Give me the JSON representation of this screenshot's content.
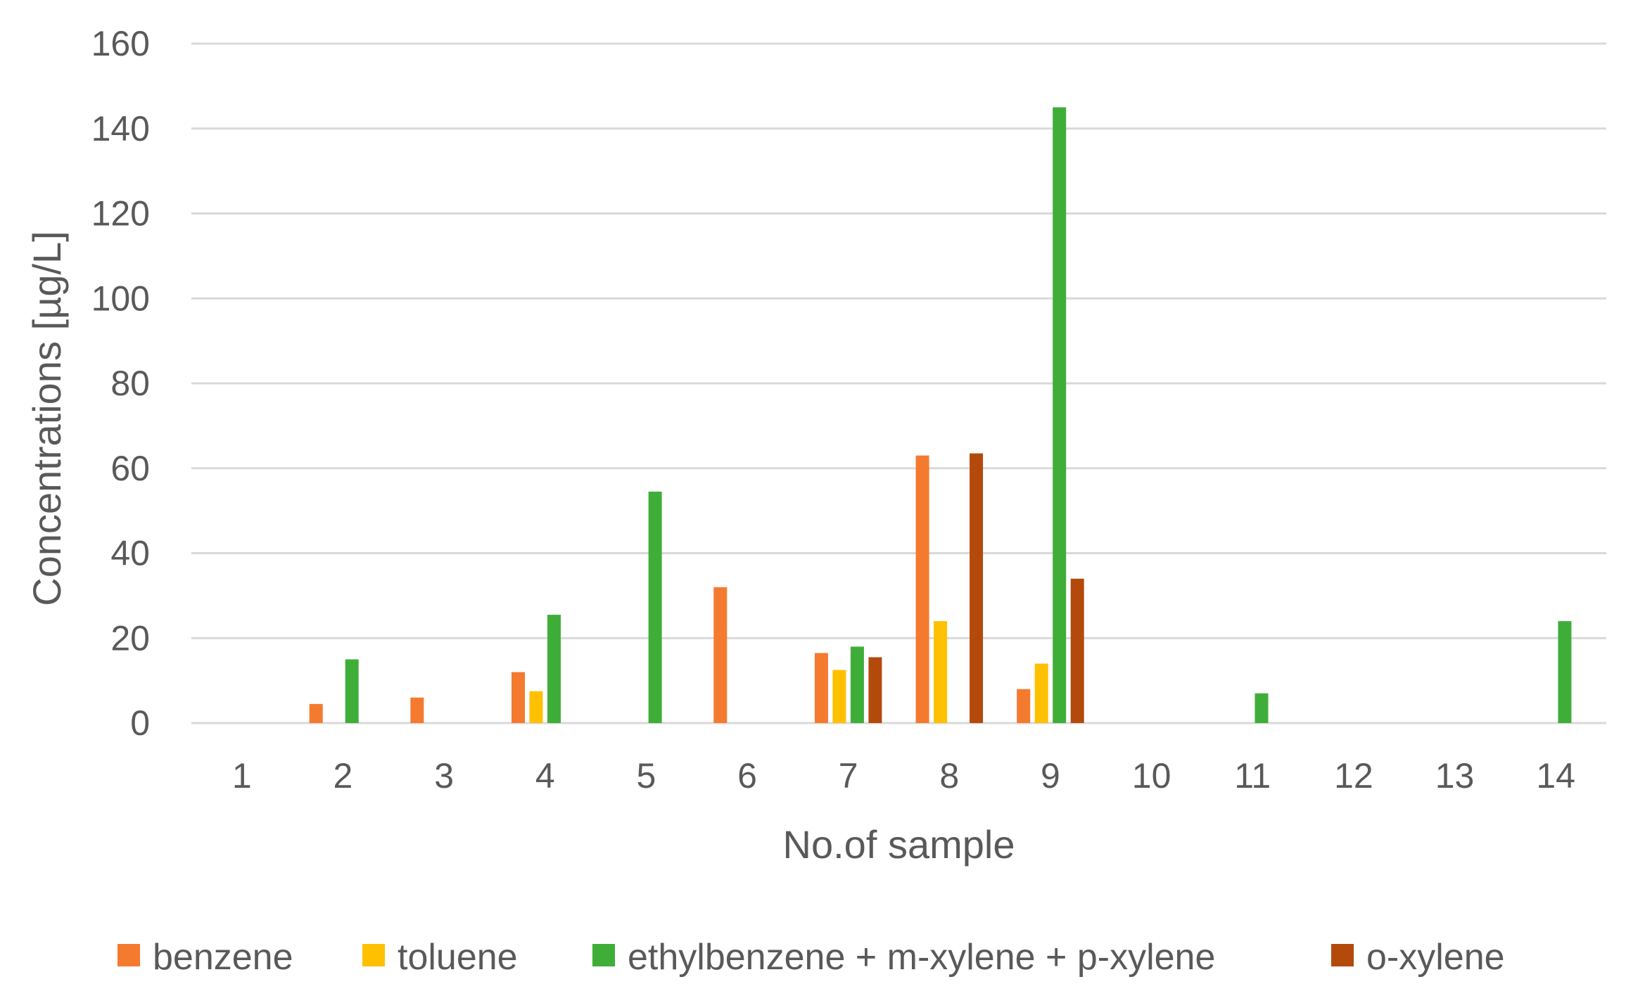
{
  "chart_data": {
    "type": "bar",
    "title": "",
    "xlabel": "No.of sample",
    "ylabel": "Concentrations [µg/L]",
    "ylim": [
      0,
      160
    ],
    "yticks": [
      0,
      20,
      40,
      60,
      80,
      100,
      120,
      140,
      160
    ],
    "grid": true,
    "legend_position": "bottom",
    "categories": [
      "1",
      "2",
      "3",
      "4",
      "5",
      "6",
      "7",
      "8",
      "9",
      "10",
      "11",
      "12",
      "13",
      "14"
    ],
    "series": [
      {
        "name": "benzene",
        "color": "#F47A30",
        "values": [
          0,
          4.5,
          6,
          12,
          0,
          32,
          16.5,
          63,
          8,
          0,
          0,
          0,
          0,
          0
        ]
      },
      {
        "name": "toluene",
        "color": "#FFC000",
        "values": [
          0,
          0,
          0,
          7.5,
          0,
          0,
          12.5,
          24,
          14,
          0,
          0,
          0,
          0,
          0
        ]
      },
      {
        "name": "ethylbenzene +  m-xylene +  p-xylene",
        "color": "#3FAE39",
        "values": [
          0,
          15,
          0,
          25.5,
          54.5,
          0,
          18,
          0,
          145,
          0,
          7,
          0,
          0,
          24
        ]
      },
      {
        "name": "o-xylene",
        "color": "#B34A0B",
        "values": [
          0,
          0,
          0,
          0,
          0,
          0,
          15.5,
          63.5,
          34,
          0,
          0,
          0,
          0,
          0
        ]
      }
    ]
  }
}
